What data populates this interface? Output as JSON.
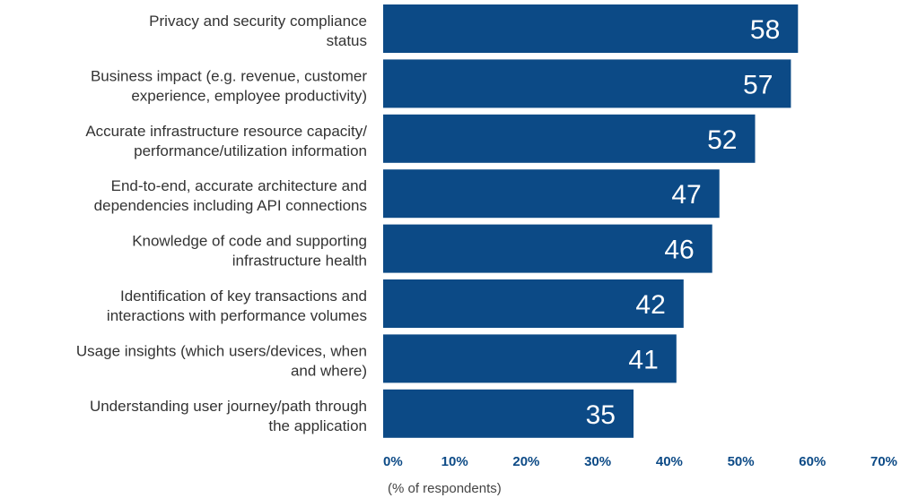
{
  "chart_data": {
    "type": "bar",
    "orientation": "horizontal",
    "categories": [
      [
        "Privacy and security compliance",
        "status"
      ],
      [
        "Business impact (e.g. revenue, customer",
        "experience, employee productivity)"
      ],
      [
        "Accurate infrastructure resource capacity/",
        "performance/utilization information"
      ],
      [
        "End-to-end, accurate architecture and",
        "dependencies including API connections"
      ],
      [
        "Knowledge of code and supporting",
        "infrastructure health"
      ],
      [
        "Identification of key transactions and",
        "interactions with performance volumes"
      ],
      [
        "Usage insights (which users/devices, when",
        "and where)"
      ],
      [
        "Understanding user journey/path through",
        "the application"
      ]
    ],
    "values": [
      58,
      57,
      52,
      47,
      46,
      42,
      41,
      35
    ],
    "value_labels": [
      "58",
      "57",
      "52",
      "47",
      "46",
      "42",
      "41",
      "35"
    ],
    "xlim": [
      0,
      70
    ],
    "xticks": [
      0,
      10,
      20,
      30,
      40,
      50,
      60,
      70
    ],
    "xtick_labels": [
      "0%",
      "10%",
      "20%",
      "30%",
      "40%",
      "50%",
      "60%",
      "70%"
    ],
    "xlabel": "(% of respondents)",
    "grid": false,
    "colors": {
      "bar": "#0c4a86",
      "tick": "#0c4a86",
      "value_label": "#ffffff"
    }
  }
}
